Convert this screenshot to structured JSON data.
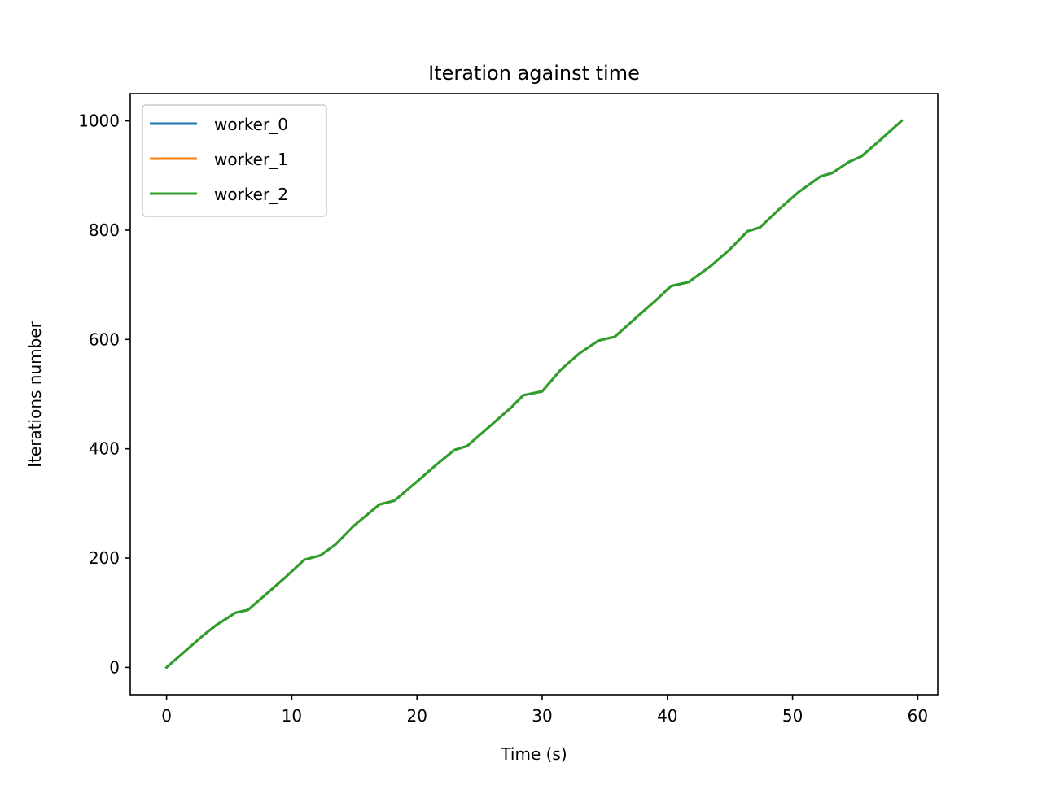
{
  "chart_data": {
    "type": "line",
    "title": "Iteration against time",
    "xlabel": "Time (s)",
    "ylabel": "Iterations number",
    "xlim": [
      -2.9,
      61.6
    ],
    "ylim": [
      -50,
      1050
    ],
    "xticks": [
      0,
      10,
      20,
      30,
      40,
      50,
      60
    ],
    "yticks": [
      0,
      200,
      400,
      600,
      800,
      1000
    ],
    "grid": false,
    "legend_position": "upper-left",
    "series": [
      {
        "name": "worker_0",
        "color": "#1f77b4",
        "x": [
          0,
          1,
          2,
          3,
          4,
          4.5,
          5.5,
          6.5,
          8,
          9.5,
          11,
          11.5,
          12.3,
          13.5,
          15,
          17,
          18.2,
          20,
          21.5,
          23,
          24,
          26,
          27.5,
          28.5,
          30,
          31.5,
          33,
          34.5,
          35.8,
          37.5,
          39,
          40.3,
          41.7,
          43.5,
          45,
          46.4,
          47.4,
          49,
          50.5,
          52.2,
          53.2,
          54.5,
          55.5,
          57,
          58.7
        ],
        "y": [
          0,
          20,
          40,
          60,
          78,
          85,
          100,
          105,
          135,
          165,
          197,
          200,
          205,
          225,
          260,
          298,
          305,
          340,
          370,
          398,
          405,
          445,
          475,
          498,
          505,
          545,
          575,
          598,
          605,
          640,
          670,
          698,
          705,
          735,
          765,
          798,
          805,
          840,
          870,
          898,
          905,
          925,
          935,
          965,
          1000
        ]
      },
      {
        "name": "worker_1",
        "color": "#ff7f0e",
        "x": [
          0,
          1,
          2,
          3,
          4,
          4.5,
          5.5,
          6.5,
          8,
          9.5,
          11,
          11.5,
          12.3,
          13.5,
          15,
          17,
          18.2,
          20,
          21.5,
          23,
          24,
          26,
          27.5,
          28.5,
          30,
          31.5,
          33,
          34.5,
          35.8,
          37.5,
          39,
          40.3,
          41.7,
          43.5,
          45,
          46.4,
          47.4,
          49,
          50.5,
          52.2,
          53.2,
          54.5,
          55.5,
          57,
          58.7
        ],
        "y": [
          0,
          20,
          40,
          60,
          78,
          85,
          100,
          105,
          135,
          165,
          197,
          200,
          205,
          225,
          260,
          298,
          305,
          340,
          370,
          398,
          405,
          445,
          475,
          498,
          505,
          545,
          575,
          598,
          605,
          640,
          670,
          698,
          705,
          735,
          765,
          798,
          805,
          840,
          870,
          898,
          905,
          925,
          935,
          965,
          1000
        ]
      },
      {
        "name": "worker_2",
        "color": "#2ca02c",
        "x": [
          0,
          1,
          2,
          3,
          4,
          4.5,
          5.5,
          6.5,
          8,
          9.5,
          11,
          11.5,
          12.3,
          13.5,
          15,
          17,
          18.2,
          20,
          21.5,
          23,
          24,
          26,
          27.5,
          28.5,
          30,
          31.5,
          33,
          34.5,
          35.8,
          37.5,
          39,
          40.3,
          41.7,
          43.5,
          45,
          46.4,
          47.4,
          49,
          50.5,
          52.2,
          53.2,
          54.5,
          55.5,
          57,
          58.7
        ],
        "y": [
          0,
          20,
          40,
          60,
          78,
          85,
          100,
          105,
          135,
          165,
          197,
          200,
          205,
          225,
          260,
          298,
          305,
          340,
          370,
          398,
          405,
          445,
          475,
          498,
          505,
          545,
          575,
          598,
          605,
          640,
          670,
          698,
          705,
          735,
          765,
          798,
          805,
          840,
          870,
          898,
          905,
          925,
          935,
          965,
          1000
        ]
      }
    ]
  }
}
